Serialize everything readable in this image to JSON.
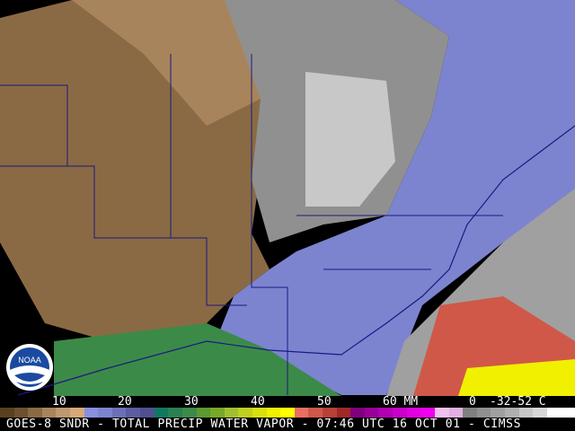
{
  "title": "GOES-8 SNDR - TOTAL PRECIP WATER VAPOR - 07:46 UTC 16 OCT 01 - CIMSS",
  "logo_text": "NOAA",
  "scale": {
    "labels": [
      "10",
      "20",
      "30",
      "40",
      "50",
      "60 MM",
      "0",
      "-32-52 C"
    ],
    "colors": [
      "#5a4020",
      "#6e5030",
      "#8a6a44",
      "#a8845c",
      "#c09870",
      "#d8a878",
      "#8890e0",
      "#7c84d0",
      "#6c70b8",
      "#5c5ca0",
      "#505090",
      "#107860",
      "#2a8050",
      "#3c8a48",
      "#5a9a30",
      "#78a828",
      "#a0c030",
      "#c0d020",
      "#d8e010",
      "#f0f000",
      "#ffff00",
      "#e87060",
      "#d05848",
      "#b84038",
      "#a02828",
      "#800080",
      "#980098",
      "#b000b0",
      "#c800c8",
      "#e000e0",
      "#f000f0",
      "#f0c0f0",
      "#e0b0e0",
      "#808080",
      "#909090",
      "#a0a0a0",
      "#b0b0b0",
      "#c8c8c8",
      "#d8d8d8",
      "#ffffff",
      "#ffffff"
    ]
  }
}
